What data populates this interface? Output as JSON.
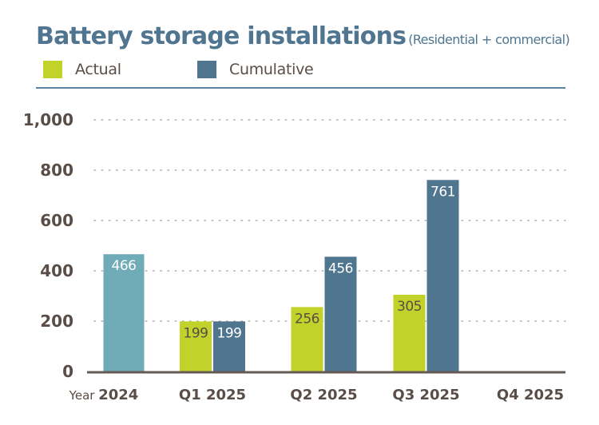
{
  "chart_data": {
    "type": "bar",
    "title": "Battery storage installations",
    "subtitle": "(Residential + commercial)",
    "xlabel": "",
    "ylabel": "",
    "ylim": [
      0,
      1000
    ],
    "yticks": [
      0,
      200,
      400,
      600,
      800,
      1000
    ],
    "ytick_labels": [
      "0",
      "200",
      "400",
      "600",
      "800",
      "1,000"
    ],
    "grid": true,
    "legend_position": "top-left",
    "categories": [
      {
        "prefix": "Year",
        "label": "2024"
      },
      {
        "prefix": "",
        "label": "Q1 2025"
      },
      {
        "prefix": "",
        "label": "Q2 2025"
      },
      {
        "prefix": "",
        "label": "Q3 2025"
      },
      {
        "prefix": "",
        "label": "Q4 2025"
      }
    ],
    "series": [
      {
        "name": "Actual",
        "color": "#c1d22a",
        "label_color": "#5a4d47",
        "values": [
          null,
          199,
          256,
          305,
          null
        ]
      },
      {
        "name": "Cumulative",
        "color": "#4f758f",
        "label_color": "#ffffff",
        "values": [
          null,
          199,
          456,
          761,
          null
        ]
      }
    ],
    "annual": {
      "category_index": 0,
      "value": 466,
      "color": "#70abb8",
      "label_color": "#ffffff"
    }
  },
  "legend": [
    {
      "label": "Actual",
      "color": "#c1d22a"
    },
    {
      "label": "Cumulative",
      "color": "#4f758f"
    }
  ]
}
